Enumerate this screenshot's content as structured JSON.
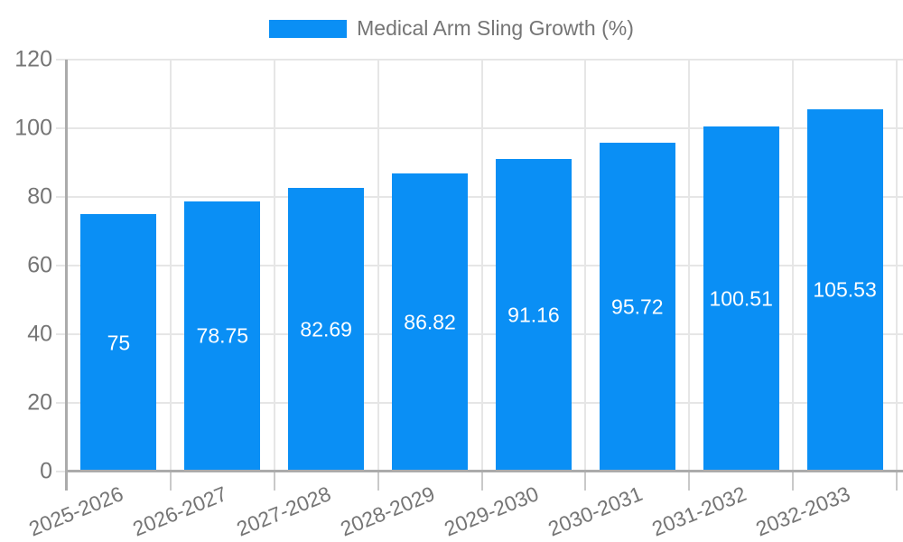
{
  "chart_data": {
    "type": "bar",
    "title": "Medical Arm Sling Growth (%)",
    "categories": [
      "2025-2026",
      "2026-2027",
      "2027-2028",
      "2028-2029",
      "2029-2030",
      "2030-2031",
      "2031-2032",
      "2032-2033"
    ],
    "values": [
      75,
      78.75,
      82.69,
      86.82,
      91.16,
      95.72,
      100.51,
      105.53
    ],
    "value_labels": [
      "75",
      "78.75",
      "82.69",
      "86.82",
      "91.16",
      "95.72",
      "100.51",
      "105.53"
    ],
    "xlabel": "",
    "ylabel": "",
    "ylim": [
      0,
      120
    ],
    "yticks": [
      0,
      20,
      40,
      60,
      80,
      100,
      120
    ],
    "grid": true,
    "legend_position": "top",
    "x_tick_rotation_deg": -22,
    "colors": {
      "bar": "#0A8FF5",
      "value_label": "#FFFFFF",
      "tick_text": "#757575",
      "grid_line": "#E6E6E6",
      "boundary_tick": "#C9C9C9",
      "axis_line": "#ABABAB",
      "background": "#FFFFFF"
    }
  }
}
